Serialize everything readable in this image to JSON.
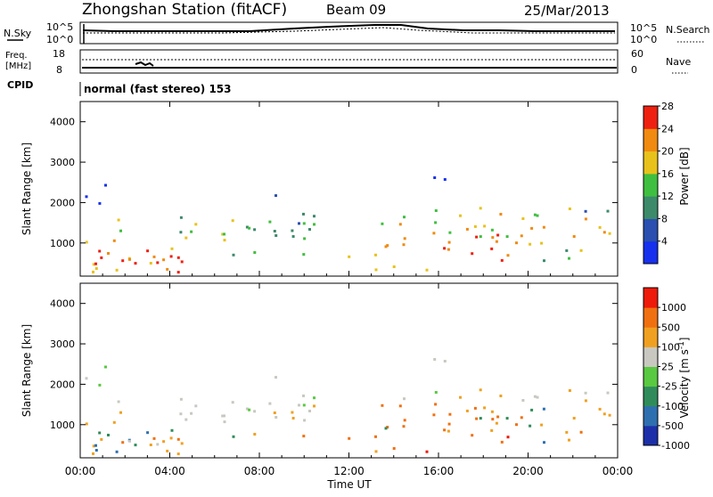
{
  "header": {
    "title": "Zhongshan Station (fitACF)",
    "beam": "Beam 09",
    "date": "25/Mar/2013"
  },
  "status_strip": {
    "noise_label": "N.Sky",
    "noise_right_label": "N.Search",
    "noise_left_ticks": [
      "10^5",
      "10^0"
    ],
    "noise_right_ticks": [
      "10^5",
      "10^0"
    ],
    "freq_label_line1": "Freq.",
    "freq_label_line2": "[MHz]",
    "freq_ticks": [
      "18",
      "8"
    ],
    "nave_label": "Nave",
    "nave_ticks": [
      "60",
      "0"
    ],
    "cpid_label": "CPID",
    "cpid_text": "normal (fast stereo) 153"
  },
  "chart_data": [
    {
      "type": "heatmap",
      "title": "",
      "ylabel": "Slant Range [km]",
      "xlabel": "",
      "ylim": [
        180,
        4500
      ],
      "xlim": [
        0,
        24
      ],
      "y_ticks": [
        1000,
        2000,
        3000,
        4000
      ],
      "colorbar": {
        "label": "Power [dB]",
        "ticks": [
          "4",
          "8",
          "12",
          "16",
          "20",
          "24",
          "28"
        ],
        "colors": [
          "#1630ee",
          "#2a4fb0",
          "#3c8a6a",
          "#3fbf3f",
          "#e8c21a",
          "#f08a10",
          "#ef2010"
        ],
        "range": [
          0,
          30
        ]
      }
    },
    {
      "type": "heatmap",
      "title": "",
      "ylabel": "Slant Range [km]",
      "xlabel": "Time UT",
      "ylim": [
        180,
        4500
      ],
      "xlim": [
        0,
        24
      ],
      "y_ticks": [
        1000,
        2000,
        3000,
        4000
      ],
      "x_ticks": [
        "00:00",
        "04:00",
        "08:00",
        "12:00",
        "16:00",
        "20:00",
        "00:00"
      ],
      "colorbar": {
        "label": "Velocity [m s^-1]",
        "ticks": [
          "1000",
          "500",
          "100",
          "25",
          "-25",
          "-100",
          "-500",
          "-1000"
        ],
        "colors": [
          "#1c2fa8",
          "#2e6fb0",
          "#2f8c5a",
          "#58c940",
          "#c8c8c0",
          "#f0a020",
          "#f07010",
          "#ee1a0a"
        ]
      }
    }
  ]
}
